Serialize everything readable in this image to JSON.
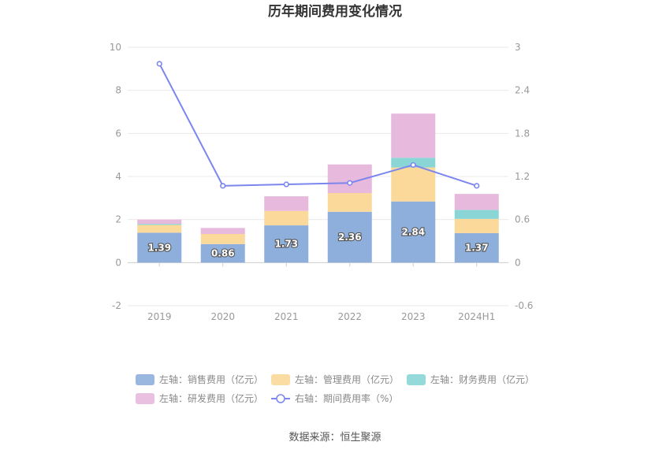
{
  "chart_data": {
    "type": "bar",
    "title": "历年期间费用变化情况",
    "categories": [
      "2019",
      "2020",
      "2021",
      "2022",
      "2023",
      "2024H1"
    ],
    "stacked": true,
    "left_axis": {
      "min": -2,
      "max": 10,
      "ticks": [
        "10",
        "8",
        "6",
        "4",
        "2",
        "0",
        "-2"
      ]
    },
    "right_axis": {
      "min": -0.6,
      "max": 3,
      "ticks": [
        "3",
        "2.4",
        "1.8",
        "1.2",
        "0.6",
        "0",
        "-0.6"
      ]
    },
    "series": [
      {
        "name": "左轴：销售费用（亿元）",
        "axis": "left",
        "type": "bar",
        "color": "#8eafdb",
        "values": [
          1.39,
          0.86,
          1.73,
          2.36,
          2.84,
          1.37
        ],
        "labels": [
          "1.39",
          "0.86",
          "1.73",
          "2.36",
          "2.84",
          "1.37"
        ]
      },
      {
        "name": "左轴：管理费用（亿元）",
        "axis": "left",
        "type": "bar",
        "color": "#fbd99a",
        "values": [
          0.36,
          0.47,
          0.67,
          0.87,
          1.58,
          0.66
        ]
      },
      {
        "name": "左轴：财务费用（亿元）",
        "axis": "left",
        "type": "bar",
        "color": "#8ad6d6",
        "values": [
          0.05,
          0.0,
          0.0,
          0.0,
          0.45,
          0.42
        ]
      },
      {
        "name": "左轴：研发费用（亿元）",
        "axis": "left",
        "type": "bar",
        "color": "#e7b9dc",
        "values": [
          0.2,
          0.28,
          0.68,
          1.33,
          2.05,
          0.74
        ]
      },
      {
        "name": "右轴：期间费用率（%）",
        "axis": "right",
        "type": "line",
        "color": "#7b86ee",
        "values": [
          2.77,
          1.07,
          1.09,
          1.11,
          1.36,
          1.07
        ]
      }
    ],
    "legend": {
      "position": "bottom"
    },
    "grid": true
  },
  "source": "数据来源：恒生聚源"
}
